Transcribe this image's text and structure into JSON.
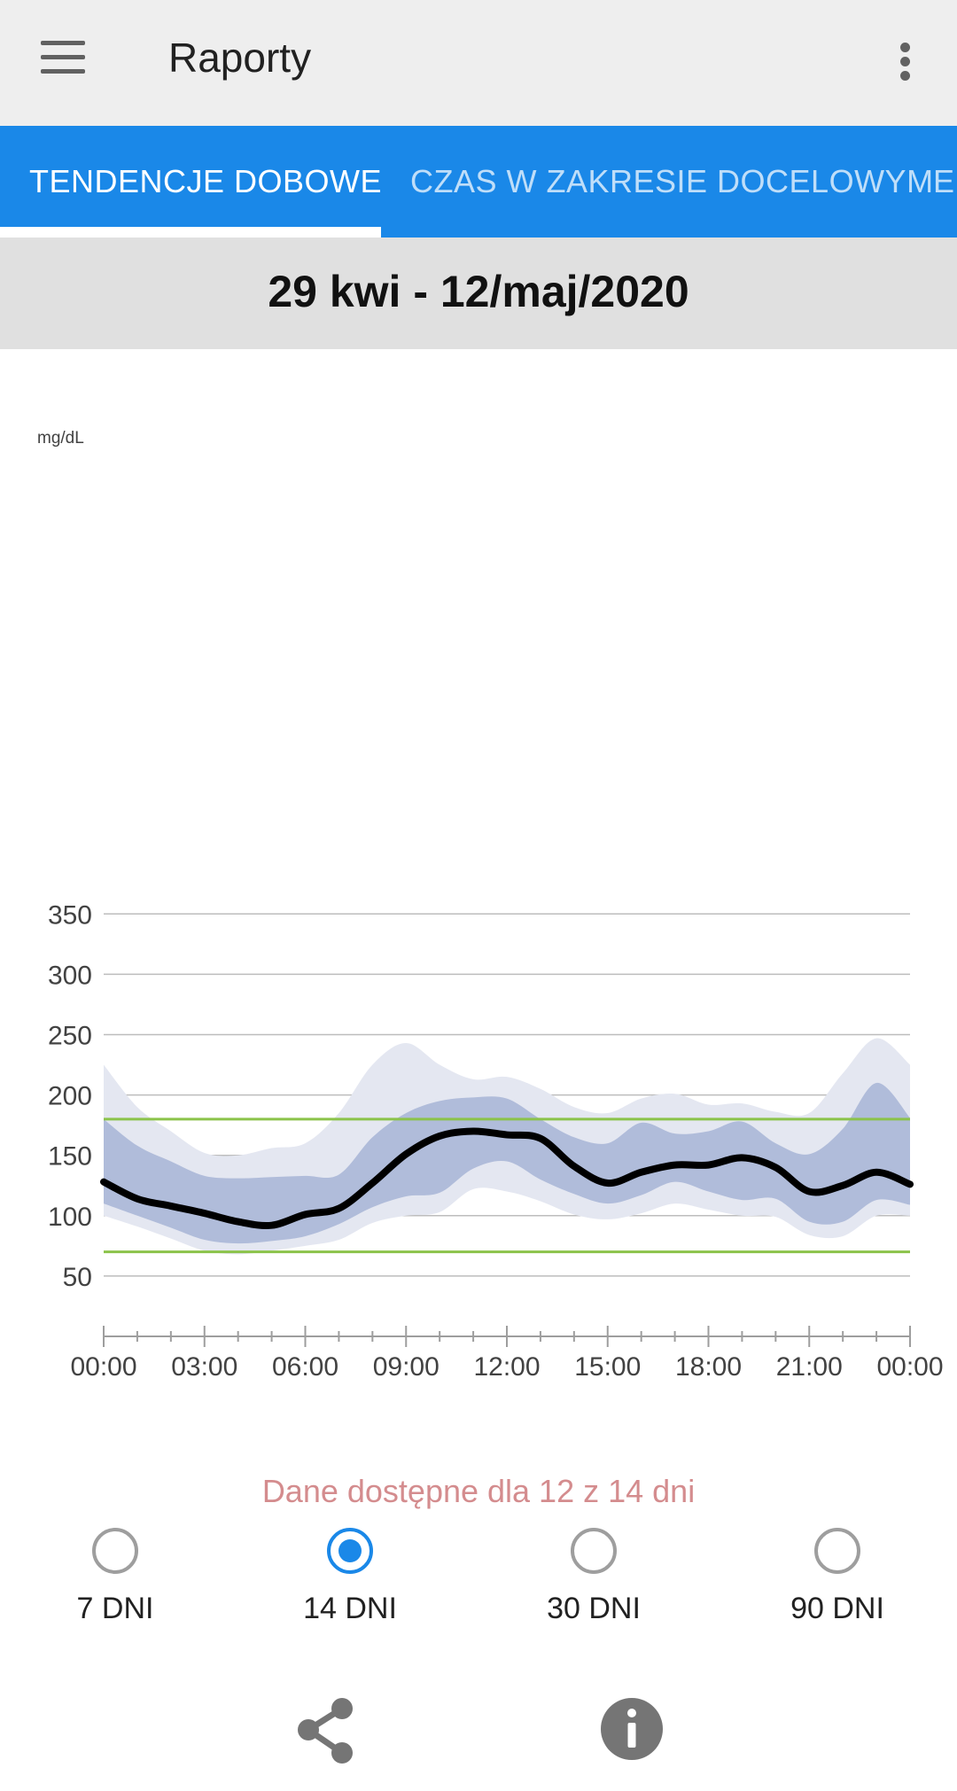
{
  "appbar": {
    "title": "Raporty",
    "menu_icon": "menu-icon",
    "more_icon": "more-vert-icon"
  },
  "tabs": [
    {
      "label": "TENDENCJE DOBOWE",
      "active": true
    },
    {
      "label": "CZAS W ZAKRESIE DOCELOWYM",
      "active": false
    },
    {
      "label": "EI",
      "active": false
    }
  ],
  "date_range": "29 kwi - 12/maj/2020",
  "availability": "Dane dostępne dla 12 z 14 dni",
  "periods": [
    {
      "label": "7 DNI",
      "selected": false
    },
    {
      "label": "14 DNI",
      "selected": true
    },
    {
      "label": "30 DNI",
      "selected": false
    },
    {
      "label": "90 DNI",
      "selected": false
    }
  ],
  "actions": {
    "share_icon": "share-icon",
    "info_icon": "info-icon"
  },
  "colors": {
    "accent": "#1a88e8",
    "target_line": "#8bc34a",
    "band_outer": "#e4e7f1",
    "band_inner": "#b0bcda",
    "median": "#000000",
    "availability_text": "#d48c8e"
  },
  "chart_data": {
    "type": "area",
    "unit_label": "mg/dL",
    "y_ticks": [
      50,
      100,
      150,
      200,
      250,
      300,
      350
    ],
    "ylim": [
      0,
      350
    ],
    "x_tick_labels": [
      "00:00",
      "03:00",
      "06:00",
      "09:00",
      "12:00",
      "15:00",
      "18:00",
      "21:00",
      "00:00"
    ],
    "xlim_hours": [
      0,
      24
    ],
    "target_range": [
      70,
      180
    ],
    "x_hours": [
      0,
      1,
      2,
      3,
      4,
      5,
      6,
      7,
      8,
      9,
      10,
      11,
      12,
      13,
      14,
      15,
      16,
      17,
      18,
      19,
      20,
      21,
      22,
      23,
      24
    ],
    "series": [
      {
        "name": "p90",
        "values": [
          225,
          190,
          170,
          152,
          150,
          156,
          160,
          185,
          225,
          243,
          225,
          213,
          215,
          205,
          190,
          185,
          197,
          201,
          192,
          193,
          186,
          185,
          218,
          247,
          225
        ]
      },
      {
        "name": "p75",
        "values": [
          180,
          158,
          145,
          133,
          131,
          132,
          133,
          134,
          165,
          185,
          195,
          198,
          197,
          180,
          165,
          160,
          177,
          168,
          170,
          178,
          160,
          151,
          172,
          210,
          181
        ]
      },
      {
        "name": "median",
        "values": [
          128,
          114,
          108,
          102,
          95,
          92,
          101,
          106,
          127,
          151,
          166,
          170,
          167,
          164,
          141,
          127,
          136,
          142,
          142,
          148,
          140,
          120,
          125,
          136,
          126
        ]
      },
      {
        "name": "p25",
        "values": [
          110,
          100,
          90,
          80,
          77,
          79,
          83,
          93,
          107,
          116,
          119,
          139,
          145,
          130,
          118,
          110,
          117,
          128,
          120,
          113,
          114,
          95,
          95,
          113,
          109
        ]
      },
      {
        "name": "p10",
        "values": [
          100,
          91,
          81,
          71,
          68,
          71,
          75,
          80,
          94,
          100,
          103,
          122,
          120,
          112,
          101,
          97,
          102,
          110,
          105,
          100,
          99,
          84,
          83,
          100,
          100
        ]
      }
    ]
  }
}
